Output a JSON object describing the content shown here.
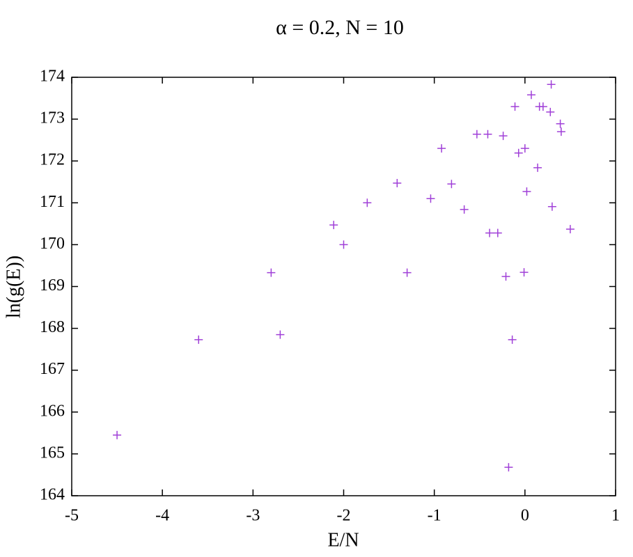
{
  "chart_data": {
    "type": "scatter",
    "title": "α = 0.2, N = 10",
    "x_label": "E/N",
    "y_label": "ln(g(E))",
    "series": [
      {
        "color": "#a040d8",
        "x": [
          -4.5,
          -3.6,
          -2.8,
          -2.7,
          -2.11,
          -2.0,
          -1.74,
          -1.41,
          -1.3,
          -1.04,
          -0.92,
          -0.81,
          -0.67,
          -0.53,
          -0.41,
          -0.39,
          -0.3,
          -0.24,
          -0.21,
          -0.18,
          -0.14,
          -0.11,
          -0.07,
          -0.01,
          0.0,
          0.02,
          0.07,
          0.14,
          0.16,
          0.2,
          0.28,
          0.29,
          0.3,
          0.39,
          0.4,
          0.5
        ],
        "values": [
          165.45,
          167.73,
          169.33,
          167.85,
          170.47,
          170.0,
          171.0,
          171.47,
          169.33,
          171.1,
          172.3,
          171.45,
          170.84,
          172.64,
          172.64,
          170.28,
          170.28,
          172.6,
          169.24,
          164.68,
          167.73,
          173.3,
          172.19,
          169.34,
          172.3,
          171.27,
          173.58,
          171.84,
          173.3,
          173.3,
          173.17,
          173.83,
          170.91,
          172.89,
          172.7,
          170.37
        ]
      }
    ],
    "xlim": [
      -5,
      1
    ],
    "xticks": [
      -5,
      -4,
      -3,
      -2,
      -1,
      0,
      1
    ],
    "ylim": [
      164,
      174
    ],
    "yticks": [
      164,
      165,
      166,
      167,
      168,
      169,
      170,
      171,
      172,
      173,
      174
    ],
    "grid": false
  }
}
